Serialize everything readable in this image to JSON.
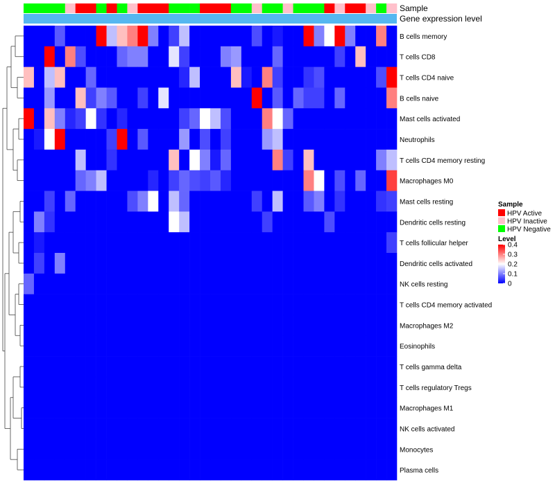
{
  "chart_data": {
    "type": "heatmap",
    "title": "",
    "annotation_tracks": [
      "Sample",
      "Gene expression level"
    ],
    "row_labels": [
      "B cells memory",
      "T cells CD8",
      "T cells CD4 naive",
      "B cells naive",
      "Mast cells activated",
      "Neutrophils",
      "T cells CD4 memory resting",
      "Macrophages M0",
      "Mast cells resting",
      "Dendritic cells resting",
      "T cells follicular helper",
      "Dendritic cells activated",
      "NK cells resting",
      "T cells CD4 memory activated",
      "Macrophages M2",
      "Eosinophils",
      "T cells gamma delta",
      "T cells regulatory  Tregs",
      "Macrophages M1",
      "NK cells activated",
      "Monocytes",
      "Plasma cells"
    ],
    "sample_groups": [
      "N",
      "N",
      "N",
      "N",
      "I",
      "A",
      "A",
      "N",
      "A",
      "N",
      "I",
      "A",
      "A",
      "A",
      "N",
      "N",
      "N",
      "A",
      "A",
      "A",
      "N",
      "N",
      "I",
      "N",
      "N",
      "I",
      "N",
      "N",
      "N",
      "A",
      "I",
      "A",
      "A",
      "I",
      "N",
      "I"
    ],
    "matrix": [
      [
        0.0,
        0.0,
        0.0,
        0.07,
        0.0,
        0.0,
        0.0,
        0.4,
        0.15,
        0.25,
        0.3,
        0.4,
        0.1,
        0.0,
        0.05,
        0.15,
        0.0,
        0.0,
        0.0,
        0.0,
        0.0,
        0.0,
        0.06,
        0.0,
        0.02,
        0.0,
        0.0,
        0.4,
        0.1,
        0.2,
        0.4,
        0.1,
        0.0,
        0.0,
        0.3,
        0.0
      ],
      [
        0.0,
        0.0,
        0.4,
        0.0,
        0.3,
        0.06,
        0.0,
        0.0,
        0.0,
        0.08,
        0.1,
        0.1,
        0.0,
        0.0,
        0.18,
        0.05,
        0.0,
        0.0,
        0.0,
        0.1,
        0.12,
        0.0,
        0.0,
        0.0,
        0.08,
        0.0,
        0.0,
        0.0,
        0.0,
        0.0,
        0.05,
        0.0,
        0.25,
        0.0,
        0.0,
        0.0
      ],
      [
        0.25,
        0.0,
        0.15,
        0.25,
        0.0,
        0.0,
        0.08,
        0.0,
        0.0,
        0.0,
        0.0,
        0.0,
        0.0,
        0.0,
        0.0,
        0.03,
        0.15,
        0.0,
        0.0,
        0.0,
        0.25,
        0.02,
        0.0,
        0.3,
        0.05,
        0.0,
        0.0,
        0.04,
        0.06,
        0.0,
        0.0,
        0.0,
        0.0,
        0.0,
        0.06,
        0.4
      ],
      [
        0.0,
        0.0,
        0.12,
        0.0,
        0.0,
        0.25,
        0.05,
        0.1,
        0.07,
        0.0,
        0.0,
        0.05,
        0.0,
        0.18,
        0.0,
        0.0,
        0.0,
        0.0,
        0.0,
        0.0,
        0.0,
        0.0,
        0.4,
        0.0,
        0.07,
        0.0,
        0.08,
        0.05,
        0.05,
        0.0,
        0.08,
        0.0,
        0.0,
        0.0,
        0.0,
        0.3
      ],
      [
        0.4,
        0.0,
        0.25,
        0.1,
        0.03,
        0.05,
        0.2,
        0.04,
        0.0,
        0.03,
        0.0,
        0.0,
        0.0,
        0.0,
        0.0,
        0.05,
        0.08,
        0.2,
        0.15,
        0.06,
        0.0,
        0.0,
        0.0,
        0.3,
        0.2,
        0.08,
        0.0,
        0.0,
        0.0,
        0.0,
        0.0,
        0.0,
        0.0,
        0.0,
        0.0,
        0.0
      ],
      [
        0.0,
        0.02,
        0.2,
        0.4,
        0.0,
        0.0,
        0.0,
        0.0,
        0.05,
        0.4,
        0.0,
        0.07,
        0.0,
        0.0,
        0.0,
        0.12,
        0.0,
        0.06,
        0.0,
        0.05,
        0.0,
        0.0,
        0.0,
        0.12,
        0.15,
        0.0,
        0.0,
        0.0,
        0.0,
        0.0,
        0.0,
        0.0,
        0.0,
        0.0,
        0.0,
        0.0
      ],
      [
        0.0,
        0.0,
        0.0,
        0.0,
        0.0,
        0.15,
        0.0,
        0.0,
        0.04,
        0.0,
        0.0,
        0.0,
        0.0,
        0.0,
        0.25,
        0.0,
        0.2,
        0.1,
        0.02,
        0.08,
        0.0,
        0.0,
        0.0,
        0.0,
        0.3,
        0.05,
        0.0,
        0.25,
        0.0,
        0.0,
        0.0,
        0.0,
        0.0,
        0.0,
        0.1,
        0.15
      ],
      [
        0.0,
        0.0,
        0.0,
        0.0,
        0.0,
        0.08,
        0.1,
        0.15,
        0.0,
        0.0,
        0.0,
        0.0,
        0.03,
        0.0,
        0.05,
        0.08,
        0.06,
        0.05,
        0.07,
        0.03,
        0.0,
        0.0,
        0.0,
        0.0,
        0.0,
        0.0,
        0.0,
        0.3,
        0.2,
        0.0,
        0.06,
        0.0,
        0.08,
        0.0,
        0.0,
        0.35
      ],
      [
        0.0,
        0.0,
        0.05,
        0.0,
        0.08,
        0.0,
        0.0,
        0.0,
        0.0,
        0.0,
        0.06,
        0.1,
        0.2,
        0.0,
        0.15,
        0.08,
        0.0,
        0.0,
        0.0,
        0.0,
        0.0,
        0.0,
        0.05,
        0.0,
        0.15,
        0.0,
        0.0,
        0.07,
        0.1,
        0.0,
        0.04,
        0.0,
        0.0,
        0.0,
        0.04,
        0.05
      ],
      [
        0.0,
        0.1,
        0.04,
        0.0,
        0.0,
        0.0,
        0.0,
        0.0,
        0.0,
        0.0,
        0.0,
        0.0,
        0.0,
        0.0,
        0.2,
        0.15,
        0.0,
        0.0,
        0.0,
        0.0,
        0.0,
        0.0,
        0.0,
        0.05,
        0.0,
        0.0,
        0.0,
        0.0,
        0.0,
        0.06,
        0.0,
        0.0,
        0.0,
        0.0,
        0.0,
        0.0
      ],
      [
        0.0,
        0.02,
        0.0,
        0.0,
        0.0,
        0.0,
        0.0,
        0.0,
        0.0,
        0.0,
        0.0,
        0.0,
        0.0,
        0.0,
        0.0,
        0.0,
        0.0,
        0.0,
        0.0,
        0.0,
        0.0,
        0.0,
        0.0,
        0.0,
        0.0,
        0.0,
        0.0,
        0.0,
        0.0,
        0.0,
        0.0,
        0.0,
        0.0,
        0.0,
        0.0,
        0.05
      ],
      [
        0.0,
        0.05,
        0.0,
        0.1,
        0.0,
        0.0,
        0.0,
        0.0,
        0.0,
        0.0,
        0.0,
        0.0,
        0.0,
        0.0,
        0.0,
        0.0,
        0.0,
        0.0,
        0.0,
        0.0,
        0.0,
        0.0,
        0.0,
        0.0,
        0.0,
        0.0,
        0.0,
        0.0,
        0.0,
        0.0,
        0.0,
        0.0,
        0.0,
        0.0,
        0.0,
        0.0
      ],
      [
        0.08,
        0.0,
        0.0,
        0.0,
        0.0,
        0.0,
        0.0,
        0.0,
        0.0,
        0.0,
        0.0,
        0.0,
        0.0,
        0.0,
        0.0,
        0.0,
        0.0,
        0.0,
        0.0,
        0.0,
        0.0,
        0.0,
        0.0,
        0.0,
        0.0,
        0.0,
        0.0,
        0.0,
        0.0,
        0.0,
        0.0,
        0.0,
        0.0,
        0.0,
        0.0,
        0.0
      ],
      [
        0.0,
        0.0,
        0.0,
        0.0,
        0.0,
        0.0,
        0.0,
        0.0,
        0.0,
        0.0,
        0.0,
        0.0,
        0.0,
        0.0,
        0.0,
        0.0,
        0.0,
        0.0,
        0.0,
        0.0,
        0.0,
        0.0,
        0.0,
        0.0,
        0.0,
        0.0,
        0.0,
        0.0,
        0.0,
        0.0,
        0.0,
        0.0,
        0.0,
        0.0,
        0.0,
        0.0
      ],
      [
        0.0,
        0.0,
        0.0,
        0.0,
        0.0,
        0.0,
        0.0,
        0.0,
        0.0,
        0.0,
        0.0,
        0.0,
        0.0,
        0.0,
        0.0,
        0.0,
        0.0,
        0.0,
        0.0,
        0.0,
        0.0,
        0.0,
        0.0,
        0.0,
        0.0,
        0.0,
        0.0,
        0.0,
        0.0,
        0.0,
        0.0,
        0.0,
        0.0,
        0.0,
        0.0,
        0.0
      ],
      [
        0.0,
        0.0,
        0.0,
        0.0,
        0.0,
        0.0,
        0.0,
        0.0,
        0.0,
        0.0,
        0.0,
        0.0,
        0.0,
        0.0,
        0.0,
        0.0,
        0.0,
        0.0,
        0.0,
        0.0,
        0.0,
        0.0,
        0.0,
        0.0,
        0.0,
        0.0,
        0.0,
        0.0,
        0.0,
        0.0,
        0.0,
        0.0,
        0.0,
        0.0,
        0.0,
        0.0
      ],
      [
        0.0,
        0.0,
        0.0,
        0.0,
        0.0,
        0.0,
        0.0,
        0.0,
        0.0,
        0.0,
        0.0,
        0.0,
        0.0,
        0.0,
        0.0,
        0.0,
        0.0,
        0.0,
        0.0,
        0.0,
        0.0,
        0.0,
        0.0,
        0.0,
        0.0,
        0.0,
        0.0,
        0.0,
        0.0,
        0.0,
        0.0,
        0.0,
        0.0,
        0.0,
        0.0,
        0.0
      ],
      [
        0.0,
        0.0,
        0.0,
        0.0,
        0.0,
        0.0,
        0.0,
        0.0,
        0.0,
        0.0,
        0.0,
        0.0,
        0.0,
        0.0,
        0.0,
        0.0,
        0.0,
        0.0,
        0.0,
        0.0,
        0.0,
        0.0,
        0.0,
        0.0,
        0.0,
        0.0,
        0.0,
        0.0,
        0.0,
        0.0,
        0.0,
        0.0,
        0.0,
        0.0,
        0.0,
        0.0
      ],
      [
        0.0,
        0.0,
        0.0,
        0.0,
        0.0,
        0.0,
        0.0,
        0.0,
        0.0,
        0.0,
        0.0,
        0.0,
        0.0,
        0.0,
        0.0,
        0.0,
        0.0,
        0.0,
        0.0,
        0.0,
        0.0,
        0.0,
        0.0,
        0.0,
        0.0,
        0.0,
        0.0,
        0.0,
        0.0,
        0.0,
        0.0,
        0.0,
        0.0,
        0.0,
        0.0,
        0.0
      ],
      [
        0.0,
        0.0,
        0.0,
        0.0,
        0.0,
        0.0,
        0.0,
        0.0,
        0.0,
        0.0,
        0.0,
        0.0,
        0.0,
        0.0,
        0.0,
        0.0,
        0.0,
        0.0,
        0.0,
        0.0,
        0.0,
        0.0,
        0.0,
        0.0,
        0.0,
        0.0,
        0.0,
        0.0,
        0.0,
        0.0,
        0.0,
        0.0,
        0.0,
        0.0,
        0.0,
        0.0
      ],
      [
        0.0,
        0.0,
        0.0,
        0.0,
        0.0,
        0.0,
        0.0,
        0.0,
        0.0,
        0.0,
        0.0,
        0.0,
        0.0,
        0.0,
        0.0,
        0.0,
        0.0,
        0.0,
        0.0,
        0.0,
        0.0,
        0.0,
        0.0,
        0.0,
        0.0,
        0.0,
        0.0,
        0.0,
        0.0,
        0.0,
        0.0,
        0.0,
        0.0,
        0.0,
        0.0,
        0.0
      ],
      [
        0.0,
        0.0,
        0.0,
        0.0,
        0.0,
        0.0,
        0.0,
        0.0,
        0.0,
        0.0,
        0.0,
        0.0,
        0.0,
        0.0,
        0.0,
        0.0,
        0.0,
        0.0,
        0.0,
        0.0,
        0.0,
        0.0,
        0.0,
        0.0,
        0.0,
        0.0,
        0.0,
        0.0,
        0.0,
        0.0,
        0.0,
        0.0,
        0.0,
        0.0,
        0.0,
        0.0
      ]
    ],
    "color_scale": {
      "low": "#0000FF",
      "mid": "#FFFFFF",
      "high": "#FF0000",
      "min": 0,
      "mid_value": 0.2,
      "max": 0.4
    },
    "sample_legend": {
      "title": "Sample",
      "entries": [
        {
          "key": "A",
          "label": "HPV Active",
          "color": "#FF0000"
        },
        {
          "key": "I",
          "label": "HPV Inactive",
          "color": "#FFC0CB"
        },
        {
          "key": "N",
          "label": "HPV Negative",
          "color": "#00FF00"
        }
      ]
    },
    "level_legend": {
      "title": "Level",
      "ticks": [
        {
          "label": "0.4",
          "value": 0.4
        },
        {
          "label": "0.3",
          "value": 0.3
        },
        {
          "label": "0.2",
          "value": 0.2
        },
        {
          "label": "0.1",
          "value": 0.1
        },
        {
          "label": "0",
          "value": 0
        }
      ]
    },
    "expression_track_color": "#55B7F0",
    "legend_placement": "right"
  }
}
